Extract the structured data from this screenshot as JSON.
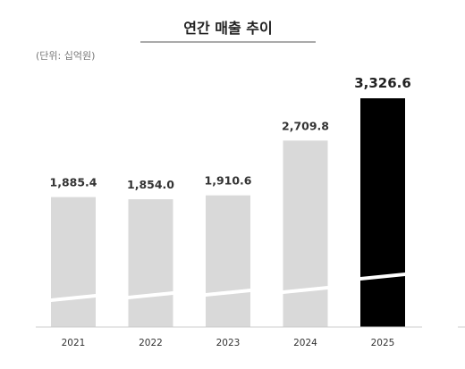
{
  "chart_data": {
    "type": "bar",
    "title": "연간 매출 추이",
    "unit_label": "(단위: 십억원)",
    "categories": [
      "2021",
      "2022",
      "2023",
      "2024",
      "2025"
    ],
    "values": [
      1885.4,
      1854.0,
      1910.6,
      2709.8,
      3326.6
    ],
    "value_labels": [
      "1,885.4",
      "1,854.0",
      "1,910.6",
      "2,709.8",
      "3,326.6"
    ],
    "highlight_index": 4,
    "axis_break": true,
    "colors": {
      "bar": "#d9d9d9",
      "highlight": "#000000",
      "axis": "#cccccc",
      "title_rule": "#555555"
    }
  }
}
